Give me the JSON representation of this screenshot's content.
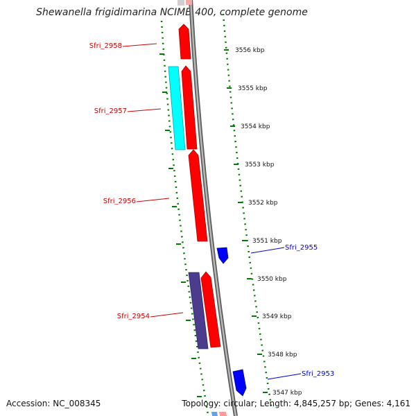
{
  "title": "Shewanella frigidimarina NCIMB 400, complete genome",
  "footer": {
    "accession": "Accession: NC_008345",
    "topology": "Topology: circular; Length: 4,845,257 bp; Genes: 4,161"
  },
  "colors": {
    "forward_gene": "#ff0000",
    "reverse_gene": "#0000ff",
    "cyan_gene": "#00ffff",
    "purple_gene": "#4b3c8e",
    "backbone": "#888888",
    "tick": "#007a00",
    "label_forward": "#cc0000",
    "label_reverse": "#0000cc"
  },
  "scale_labels": [
    "3556 kbp",
    "3555 kbp",
    "3554 kbp",
    "3553 kbp",
    "3552 kbp",
    "3551 kbp",
    "3550 kbp",
    "3549 kbp",
    "3548 kbp",
    "3547 kbp"
  ],
  "gene_labels": {
    "g2958": "Sfri_2958",
    "g2957": "Sfri_2957",
    "g2956": "Sfri_2956",
    "g2955": "Sfri_2955",
    "g2954": "Sfri_2954",
    "g2953": "Sfri_2953"
  }
}
